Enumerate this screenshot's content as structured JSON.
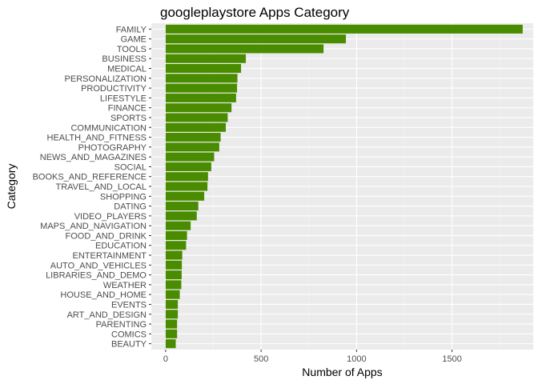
{
  "chart_data": {
    "type": "bar",
    "orientation": "horizontal",
    "title": "googleplaystore Apps Category",
    "xlabel": "Number of Apps",
    "ylabel": "Category",
    "xlim": [
      -75,
      1925
    ],
    "xticks": [
      0,
      500,
      1000,
      1500
    ],
    "grid": true,
    "legend": "none",
    "colors": {
      "bar": "#4a8c00",
      "panel": "#ebebeb",
      "grid_major": "#ffffff",
      "grid_minor": "#f4f4f4"
    },
    "categories": [
      "FAMILY",
      "GAME",
      "TOOLS",
      "BUSINESS",
      "MEDICAL",
      "PERSONALIZATION",
      "PRODUCTIVITY",
      "LIFESTYLE",
      "FINANCE",
      "SPORTS",
      "COMMUNICATION",
      "HEALTH_AND_FITNESS",
      "PHOTOGRAPHY",
      "NEWS_AND_MAGAZINES",
      "SOCIAL",
      "BOOKS_AND_REFERENCE",
      "TRAVEL_AND_LOCAL",
      "SHOPPING",
      "DATING",
      "VIDEO_PLAYERS",
      "MAPS_AND_NAVIGATION",
      "FOOD_AND_DRINK",
      "EDUCATION",
      "ENTERTAINMENT",
      "AUTO_AND_VEHICLES",
      "LIBRARIES_AND_DEMO",
      "WEATHER",
      "HOUSE_AND_HOME",
      "EVENTS",
      "ART_AND_DESIGN",
      "PARENTING",
      "COMICS",
      "BEAUTY"
    ],
    "values": [
      1870,
      944,
      827,
      420,
      395,
      376,
      374,
      369,
      345,
      325,
      315,
      288,
      281,
      254,
      239,
      222,
      219,
      202,
      171,
      163,
      131,
      112,
      107,
      87,
      85,
      84,
      82,
      74,
      64,
      64,
      60,
      60,
      53
    ]
  }
}
